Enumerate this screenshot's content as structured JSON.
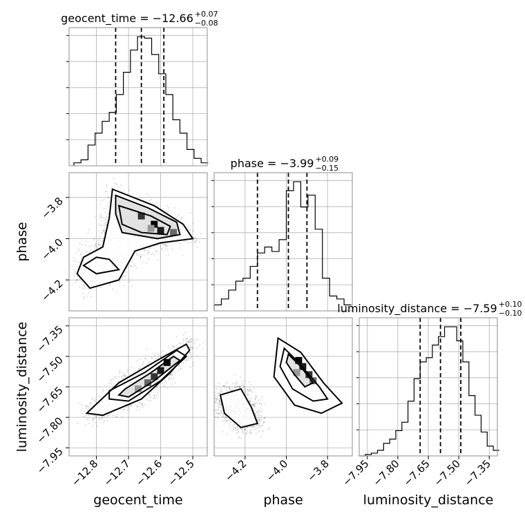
{
  "chart_data": {
    "type": "corner",
    "parameters": [
      "geocent_time",
      "phase",
      "luminosity_distance"
    ],
    "ranges": {
      "geocent_time": [
        -12.885,
        -12.455
      ],
      "phase": [
        -4.35,
        -3.68
      ],
      "luminosity_distance": [
        -7.99,
        -7.31
      ]
    },
    "ticks": {
      "geocent_time": [
        -12.8,
        -12.7,
        -12.6,
        -12.5
      ],
      "phase": [
        -4.2,
        -4.0,
        -3.8
      ],
      "luminosity_distance": [
        -7.95,
        -7.8,
        -7.65,
        -7.5,
        -7.35
      ]
    },
    "tick_labels": {
      "geocent_time": [
        "−12.8",
        "−12.7",
        "−12.6",
        "−12.5"
      ],
      "phase": [
        "−4.2",
        "−4.0",
        "−3.8"
      ],
      "luminosity_distance": [
        "−7.95",
        "−7.80",
        "−7.65",
        "−7.50",
        "−7.35"
      ]
    },
    "titles": [
      {
        "param": "geocent_time",
        "text": "geocent_time = −12.66",
        "upper": "+0.07",
        "lower": "−0.08"
      },
      {
        "param": "phase",
        "text": "phase = −3.99",
        "upper": "+0.09",
        "lower": "−0.15"
      },
      {
        "param": "luminosity_distance",
        "text": "luminosity_distance = −7.59",
        "upper": "+0.10",
        "lower": "−0.10"
      }
    ],
    "quantiles": {
      "geocent_time": [
        -12.74,
        -12.66,
        -12.59
      ],
      "phase": [
        -4.14,
        -3.99,
        -3.9
      ],
      "luminosity_distance": [
        -7.69,
        -7.59,
        -7.49
      ]
    },
    "histograms": {
      "geocent_time": {
        "bins": [
          -12.87,
          -12.848,
          -12.826,
          -12.804,
          -12.782,
          -12.76,
          -12.738,
          -12.716,
          -12.694,
          -12.672,
          -12.65,
          -12.628,
          -12.606,
          -12.584,
          -12.562,
          -12.54,
          -12.518,
          -12.496,
          -12.474,
          -12.452
        ],
        "counts": [
          2,
          4,
          14,
          22,
          30,
          36,
          48,
          63,
          78,
          87,
          86,
          75,
          62,
          48,
          31,
          22,
          11,
          5,
          2
        ]
      },
      "phase": {
        "bins": [
          -4.35,
          -4.315,
          -4.28,
          -4.245,
          -4.21,
          -4.175,
          -4.14,
          -4.105,
          -4.07,
          -4.035,
          -4.0,
          -3.965,
          -3.93,
          -3.895,
          -3.86,
          -3.825,
          -3.79,
          -3.755,
          -3.72,
          -3.685
        ],
        "counts": [
          4,
          8,
          14,
          20,
          22,
          30,
          39,
          43,
          40,
          48,
          81,
          87,
          70,
          78,
          55,
          22,
          10,
          8,
          4
        ]
      },
      "luminosity_distance": {
        "bins": [
          -7.99,
          -7.96,
          -7.93,
          -7.9,
          -7.87,
          -7.84,
          -7.81,
          -7.78,
          -7.75,
          -7.72,
          -7.69,
          -7.66,
          -7.63,
          -7.6,
          -7.57,
          -7.54,
          -7.51,
          -7.48,
          -7.45,
          -7.42,
          -7.39,
          -7.36,
          -7.33,
          -7.3
        ],
        "counts": [
          0,
          1,
          2,
          4,
          9,
          12,
          18,
          24,
          39,
          55,
          67,
          70,
          79,
          85,
          92,
          92,
          82,
          67,
          43,
          29,
          17,
          7,
          4
        ]
      }
    },
    "pairs": [
      {
        "x": "geocent_time",
        "y": "phase",
        "peaks": [
          [
            -12.62,
            -3.93
          ],
          [
            -12.6,
            -3.96
          ],
          [
            -12.66,
            -3.89
          ],
          [
            -12.56,
            -3.97
          ],
          [
            -12.63,
            -3.95
          ]
        ],
        "contours": [
          [
            [
              -12.74,
              -3.79
            ],
            [
              -12.64,
              -3.85
            ],
            [
              -12.55,
              -3.92
            ],
            [
              -12.54,
              -3.98
            ],
            [
              -12.61,
              -4.0
            ],
            [
              -12.72,
              -3.97
            ],
            [
              -12.74,
              -3.88
            ]
          ],
          [
            [
              -12.73,
              -3.84
            ],
            [
              -12.63,
              -3.89
            ],
            [
              -12.57,
              -3.94
            ],
            [
              -12.58,
              -3.98
            ],
            [
              -12.66,
              -3.97
            ],
            [
              -12.72,
              -3.93
            ]
          ],
          [
            [
              -12.76,
              -4.1
            ],
            [
              -12.73,
              -4.15
            ],
            [
              -12.8,
              -4.17
            ],
            [
              -12.84,
              -4.13
            ],
            [
              -12.8,
              -4.09
            ]
          ],
          [
            [
              -12.75,
              -3.76
            ],
            [
              -12.62,
              -3.84
            ],
            [
              -12.53,
              -3.93
            ],
            [
              -12.5,
              -4.0
            ],
            [
              -12.6,
              -4.02
            ],
            [
              -12.68,
              -4.06
            ],
            [
              -12.73,
              -4.2
            ],
            [
              -12.82,
              -4.24
            ],
            [
              -12.86,
              -4.17
            ],
            [
              -12.84,
              -4.09
            ],
            [
              -12.78,
              -4.04
            ],
            [
              -12.76,
              -3.9
            ]
          ]
        ]
      },
      {
        "x": "geocent_time",
        "y": "luminosity_distance",
        "peaks": [
          [
            -12.58,
            -7.53
          ],
          [
            -12.6,
            -7.57
          ],
          [
            -12.62,
            -7.6
          ],
          [
            -12.64,
            -7.63
          ],
          [
            -12.67,
            -7.66
          ]
        ],
        "contours": [
          [
            [
              -12.71,
              -7.66
            ],
            [
              -12.63,
              -7.58
            ],
            [
              -12.56,
              -7.5
            ],
            [
              -12.54,
              -7.52
            ],
            [
              -12.62,
              -7.62
            ],
            [
              -12.7,
              -7.7
            ],
            [
              -12.73,
              -7.69
            ]
          ],
          [
            [
              -12.76,
              -7.67
            ],
            [
              -12.65,
              -7.58
            ],
            [
              -12.55,
              -7.47
            ],
            [
              -12.52,
              -7.5
            ],
            [
              -12.6,
              -7.62
            ],
            [
              -12.7,
              -7.72
            ],
            [
              -12.76,
              -7.71
            ]
          ],
          [
            [
              -12.83,
              -7.78
            ],
            [
              -12.73,
              -7.63
            ],
            [
              -12.6,
              -7.51
            ],
            [
              -12.52,
              -7.44
            ],
            [
              -12.51,
              -7.47
            ],
            [
              -12.57,
              -7.58
            ],
            [
              -12.66,
              -7.71
            ],
            [
              -12.78,
              -7.79
            ]
          ]
        ]
      },
      {
        "x": "phase",
        "y": "luminosity_distance",
        "peaks": [
          [
            -3.94,
            -7.52
          ],
          [
            -3.92,
            -7.55
          ],
          [
            -3.89,
            -7.59
          ],
          [
            -3.87,
            -7.62
          ],
          [
            -3.95,
            -7.58
          ]
        ],
        "contours": [
          [
            [
              -3.99,
              -7.49
            ],
            [
              -3.93,
              -7.55
            ],
            [
              -3.87,
              -7.63
            ],
            [
              -3.91,
              -7.65
            ],
            [
              -3.96,
              -7.59
            ],
            [
              -4.0,
              -7.53
            ]
          ],
          [
            [
              -4.01,
              -7.46
            ],
            [
              -3.95,
              -7.52
            ],
            [
              -3.84,
              -7.65
            ],
            [
              -3.8,
              -7.71
            ],
            [
              -3.87,
              -7.72
            ],
            [
              -3.97,
              -7.66
            ],
            [
              -4.03,
              -7.55
            ]
          ],
          [
            [
              -4.04,
              -7.41
            ],
            [
              -3.93,
              -7.48
            ],
            [
              -3.82,
              -7.63
            ],
            [
              -3.73,
              -7.73
            ],
            [
              -3.83,
              -7.78
            ],
            [
              -3.96,
              -7.74
            ],
            [
              -4.06,
              -7.6
            ]
          ],
          [
            [
              -4.22,
              -7.66
            ],
            [
              -4.17,
              -7.75
            ],
            [
              -4.14,
              -7.83
            ],
            [
              -4.22,
              -7.85
            ],
            [
              -4.3,
              -7.78
            ],
            [
              -4.32,
              -7.69
            ]
          ]
        ]
      }
    ],
    "grid": true
  }
}
